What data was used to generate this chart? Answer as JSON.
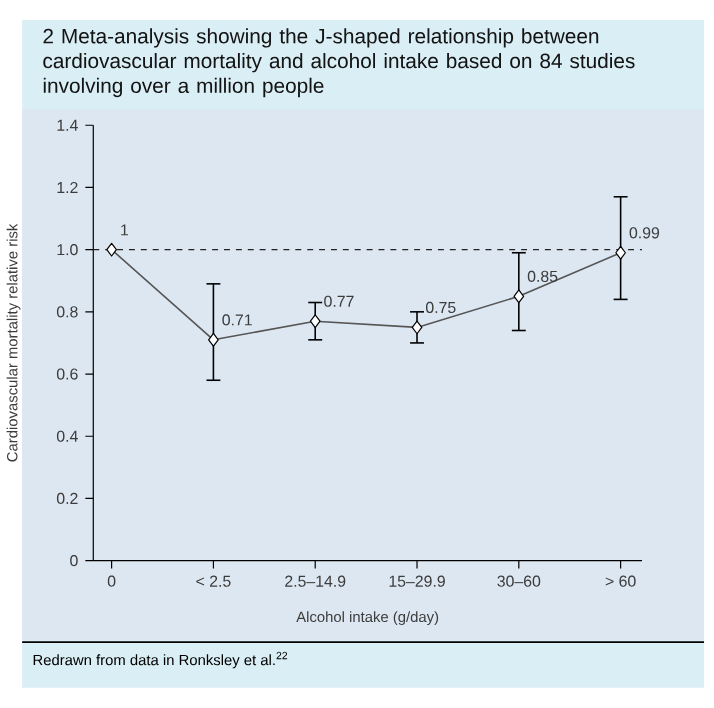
{
  "chart_data": {
    "type": "line",
    "title": "2 Meta-analysis showing the J-shaped relationship between cardiovascular mortality and alcohol intake based on 84 studies involving over a million people",
    "xlabel": "Alcohol intake (g/day)",
    "ylabel": "Cardiovascular mortality relative risk",
    "categories": [
      "0",
      "< 2.5",
      "2.5–14.9",
      "15–29.9",
      "30–60",
      "> 60"
    ],
    "values": [
      1,
      0.71,
      0.77,
      0.75,
      0.85,
      0.99
    ],
    "value_labels": [
      "1",
      "0.71",
      "0.77",
      "0.75",
      "0.85",
      "0.99"
    ],
    "errors": [
      null,
      [
        0.58,
        0.89
      ],
      [
        0.71,
        0.83
      ],
      [
        0.7,
        0.8
      ],
      [
        0.74,
        0.99
      ],
      [
        0.84,
        1.17
      ]
    ],
    "color": "#555555",
    "marker": "diamond",
    "ylim": [
      0,
      1.4
    ],
    "yticks": [
      0,
      0.2,
      0.4,
      0.6,
      0.8,
      {
        "value": 1,
        "label": "1.0"
      },
      1.2,
      1.4
    ],
    "ref_lines": [
      {
        "axis": "y",
        "value": 1,
        "line_style": "dashed",
        "color": "#222222"
      }
    ],
    "grid": false,
    "annotations": [
      "Redrawn from data in Ronksley et al.$^{22}$"
    ]
  }
}
